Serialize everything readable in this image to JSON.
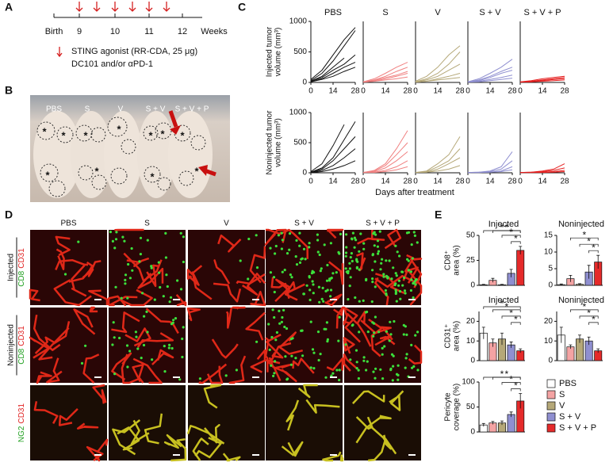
{
  "panel_labels": [
    "A",
    "B",
    "C",
    "D",
    "E"
  ],
  "timeline": {
    "ticks": [
      "Birth",
      "9",
      "10",
      "11",
      "12",
      "Weeks"
    ],
    "legend": [
      "STING agonist (RR-CDA, 25 μg)",
      "DC101 and/or αPD-1"
    ]
  },
  "photo": {
    "groups": [
      "PBS",
      "S",
      "V",
      "S + V",
      "S + V + P"
    ],
    "star": "*"
  },
  "curves_xlabel": "Days after treatment",
  "microscopy": {
    "columns": [
      "PBS",
      "S",
      "V",
      "S + V",
      "S + V + P"
    ],
    "rows": [
      {
        "title": "Injected",
        "stains": [
          "CD8",
          "CD31"
        ]
      },
      {
        "title": "Noninjected",
        "stains": [
          "CD8",
          "CD31"
        ]
      },
      {
        "stains": [
          "NG2",
          "CD31"
        ]
      }
    ]
  },
  "bar_legend": {
    "labels": [
      "PBS",
      "S",
      "V",
      "S + V",
      "S + V + P"
    ],
    "colors": [
      "#ffffff",
      "#f4a3a3",
      "#b5a878",
      "#8f8fd0",
      "#e52a2a"
    ]
  },
  "chart_data": [
    {
      "type": "line",
      "title": "PBS",
      "ylabel": [
        "Injected tumor",
        "volume (mm³)"
      ],
      "x": [
        0,
        7,
        14,
        21,
        28
      ],
      "xlim": [
        0,
        28
      ],
      "ylim": [
        0,
        1000
      ],
      "xticks": [
        0,
        14,
        28
      ],
      "yticks": [
        0,
        500,
        1000
      ],
      "series": [
        {
          "color": "#111111",
          "values": [
            50,
            200,
            450,
            700,
            900
          ]
        },
        {
          "color": "#111111",
          "values": [
            30,
            150,
            350,
            600,
            850
          ]
        },
        {
          "color": "#111111",
          "values": [
            20,
            100,
            250,
            400,
            null
          ]
        },
        {
          "color": "#111111",
          "values": [
            20,
            80,
            200,
            300,
            450
          ]
        },
        {
          "color": "#111111",
          "values": [
            10,
            60,
            150,
            250,
            330
          ]
        },
        {
          "color": "#111111",
          "values": [
            10,
            50,
            100,
            180,
            250
          ]
        }
      ]
    },
    {
      "type": "line",
      "title": "S",
      "x": [
        0,
        7,
        14,
        21,
        28
      ],
      "xlim": [
        0,
        28
      ],
      "ylim": [
        0,
        1000
      ],
      "xticks": [
        0,
        14,
        28
      ],
      "series": [
        {
          "color": "#f08080",
          "values": [
            10,
            60,
            150,
            250,
            330
          ]
        },
        {
          "color": "#f08080",
          "values": [
            10,
            40,
            100,
            180,
            250
          ]
        },
        {
          "color": "#f08080",
          "values": [
            5,
            30,
            80,
            120,
            180
          ]
        },
        {
          "color": "#f08080",
          "values": [
            5,
            20,
            60,
            100,
            150
          ]
        },
        {
          "color": "#f08080",
          "values": [
            5,
            20,
            40,
            60,
            90
          ]
        }
      ]
    },
    {
      "type": "line",
      "title": "V",
      "x": [
        0,
        7,
        14,
        21,
        28
      ],
      "xlim": [
        0,
        28
      ],
      "ylim": [
        0,
        1000
      ],
      "xticks": [
        0,
        14,
        28
      ],
      "series": [
        {
          "color": "#b5a878",
          "values": [
            20,
            100,
            250,
            450,
            600
          ]
        },
        {
          "color": "#b5a878",
          "values": [
            10,
            60,
            150,
            300,
            500
          ]
        },
        {
          "color": "#b5a878",
          "values": [
            10,
            40,
            100,
            200,
            300
          ]
        },
        {
          "color": "#b5a878",
          "values": [
            5,
            20,
            60,
            100,
            150
          ]
        },
        {
          "color": "#b5a878",
          "values": [
            5,
            20,
            40,
            60,
            80
          ]
        }
      ]
    },
    {
      "type": "line",
      "title": "S + V",
      "x": [
        0,
        7,
        14,
        21,
        28
      ],
      "xlim": [
        0,
        28
      ],
      "ylim": [
        0,
        1000
      ],
      "xticks": [
        0,
        14,
        28
      ],
      "series": [
        {
          "color": "#8f8fd0",
          "values": [
            10,
            60,
            150,
            250,
            380
          ]
        },
        {
          "color": "#8f8fd0",
          "values": [
            10,
            40,
            100,
            180,
            250
          ]
        },
        {
          "color": "#8f8fd0",
          "values": [
            5,
            30,
            80,
            150,
            200
          ]
        },
        {
          "color": "#8f8fd0",
          "values": [
            5,
            20,
            50,
            80,
            120
          ]
        },
        {
          "color": "#8f8fd0",
          "values": [
            5,
            10,
            30,
            50,
            70
          ]
        }
      ]
    },
    {
      "type": "line",
      "title": "S + V + P",
      "x": [
        0,
        7,
        14,
        21,
        28
      ],
      "xlim": [
        0,
        28
      ],
      "ylim": [
        0,
        1000
      ],
      "xticks": [
        0,
        14,
        28
      ],
      "series": [
        {
          "color": "#e52020",
          "values": [
            10,
            30,
            60,
            80,
            100
          ]
        },
        {
          "color": "#e52020",
          "values": [
            5,
            20,
            40,
            60,
            80
          ]
        },
        {
          "color": "#e52020",
          "values": [
            5,
            10,
            30,
            50,
            60
          ]
        },
        {
          "color": "#e52020",
          "values": [
            5,
            10,
            20,
            30,
            40
          ]
        }
      ]
    },
    {
      "type": "line",
      "ylabel": [
        "Noninjected tumor",
        "volume (mm³)"
      ],
      "x": [
        0,
        7,
        14,
        21,
        28
      ],
      "xlim": [
        0,
        28
      ],
      "ylim": [
        0,
        1000
      ],
      "xticks": [
        0,
        14,
        28
      ],
      "yticks": [
        0,
        500,
        1000
      ],
      "series": [
        {
          "color": "#111111",
          "values": [
            20,
            150,
            450,
            800,
            null
          ]
        },
        {
          "color": "#111111",
          "values": [
            10,
            80,
            250,
            550,
            850
          ]
        },
        {
          "color": "#111111",
          "values": [
            10,
            60,
            200,
            400,
            600
          ]
        },
        {
          "color": "#111111",
          "values": [
            5,
            40,
            120,
            250,
            400
          ]
        },
        {
          "color": "#111111",
          "values": [
            5,
            20,
            60,
            120,
            200
          ]
        }
      ]
    },
    {
      "type": "line",
      "x": [
        0,
        7,
        14,
        21,
        28
      ],
      "xlim": [
        0,
        28
      ],
      "ylim": [
        0,
        1000
      ],
      "xticks": [
        0,
        14,
        28
      ],
      "series": [
        {
          "color": "#f08080",
          "values": [
            5,
            40,
            150,
            400,
            700
          ]
        },
        {
          "color": "#f08080",
          "values": [
            5,
            30,
            120,
            300,
            500
          ]
        },
        {
          "color": "#f08080",
          "values": [
            5,
            20,
            80,
            200,
            350
          ]
        },
        {
          "color": "#f08080",
          "values": [
            5,
            10,
            40,
            100,
            200
          ]
        },
        {
          "color": "#f08080",
          "values": [
            5,
            5,
            20,
            50,
            100
          ]
        }
      ]
    },
    {
      "type": "line",
      "x": [
        0,
        7,
        14,
        21,
        28
      ],
      "xlim": [
        0,
        28
      ],
      "ylim": [
        0,
        1000
      ],
      "xticks": [
        0,
        14,
        28
      ],
      "series": [
        {
          "color": "#b5a878",
          "values": [
            5,
            30,
            150,
            300,
            600
          ]
        },
        {
          "color": "#b5a878",
          "values": [
            5,
            20,
            100,
            200,
            400
          ]
        },
        {
          "color": "#b5a878",
          "values": [
            5,
            10,
            60,
            150,
            250
          ]
        },
        {
          "color": "#b5a878",
          "values": [
            5,
            10,
            30,
            60,
            120
          ]
        }
      ]
    },
    {
      "type": "line",
      "x": [
        0,
        7,
        14,
        21,
        28
      ],
      "xlim": [
        0,
        28
      ],
      "ylim": [
        0,
        1000
      ],
      "xticks": [
        0,
        14,
        28
      ],
      "series": [
        {
          "color": "#8f8fd0",
          "values": [
            5,
            10,
            30,
            100,
            350
          ]
        },
        {
          "color": "#8f8fd0",
          "values": [
            5,
            10,
            20,
            60,
            200
          ]
        },
        {
          "color": "#8f8fd0",
          "values": [
            5,
            5,
            10,
            30,
            100
          ]
        },
        {
          "color": "#8f8fd0",
          "values": [
            5,
            5,
            10,
            20,
            50
          ]
        }
      ]
    },
    {
      "type": "line",
      "x": [
        0,
        7,
        14,
        21,
        28
      ],
      "xlim": [
        0,
        28
      ],
      "ylim": [
        0,
        1000
      ],
      "xticks": [
        0,
        14,
        28
      ],
      "series": [
        {
          "color": "#e52020",
          "values": [
            5,
            10,
            30,
            60,
            150
          ]
        },
        {
          "color": "#e52020",
          "values": [
            5,
            10,
            20,
            40,
            80
          ]
        },
        {
          "color": "#e52020",
          "values": [
            5,
            5,
            10,
            20,
            40
          ]
        },
        {
          "color": "#e52020",
          "values": [
            5,
            5,
            5,
            10,
            20
          ]
        }
      ]
    },
    {
      "type": "bar",
      "title": "Injected",
      "ylabel": [
        "CD8⁺",
        "area (%)"
      ],
      "values": [
        0.5,
        5,
        0.5,
        12,
        35
      ],
      "errors": [
        0.5,
        2,
        0.5,
        4,
        4
      ],
      "colors": [
        "#ffffff",
        "#f4a3a3",
        "#b5a878",
        "#8f8fd0",
        "#e52a2a"
      ],
      "ylim": [
        0,
        50
      ],
      "yticks": [
        0,
        25,
        50
      ],
      "stars": [
        "*",
        "*",
        "*",
        "*"
      ]
    },
    {
      "type": "bar",
      "title": "Noninjected",
      "values": [
        0.2,
        2,
        0.3,
        4,
        7
      ],
      "errors": [
        0.2,
        1,
        0.2,
        2,
        2
      ],
      "colors": [
        "#ffffff",
        "#f4a3a3",
        "#b5a878",
        "#8f8fd0",
        "#e52a2a"
      ],
      "ylim": [
        0,
        15
      ],
      "yticks": [
        0,
        5,
        10,
        15
      ],
      "stars": [
        "*",
        "*",
        "*"
      ]
    },
    {
      "type": "bar",
      "title": "Injected",
      "ylabel": [
        "CD31⁺",
        "area (%)"
      ],
      "values": [
        14,
        9,
        11,
        8,
        5
      ],
      "errors": [
        3,
        2,
        3,
        1.5,
        1
      ],
      "colors": [
        "#ffffff",
        "#f4a3a3",
        "#b5a878",
        "#8f8fd0",
        "#e52a2a"
      ],
      "ylim": [
        0,
        25
      ],
      "yticks": [
        0,
        10,
        20
      ],
      "stars": [
        "*",
        "*",
        "*",
        "*"
      ]
    },
    {
      "type": "bar",
      "title": "Noninjected",
      "values": [
        13,
        7,
        11,
        10,
        5
      ],
      "errors": [
        4,
        1,
        2,
        2,
        1
      ],
      "colors": [
        "#ffffff",
        "#f4a3a3",
        "#b5a878",
        "#8f8fd0",
        "#e52a2a"
      ],
      "ylim": [
        0,
        25
      ],
      "yticks": [
        0,
        10,
        20
      ],
      "stars": [
        "*",
        "*",
        "*"
      ]
    },
    {
      "type": "bar",
      "ylabel": [
        "Pericyte",
        "coverage (%)"
      ],
      "values": [
        14,
        18,
        18,
        35,
        62
      ],
      "errors": [
        3,
        3,
        4,
        5,
        15
      ],
      "colors": [
        "#ffffff",
        "#f4a3a3",
        "#b5a878",
        "#8f8fd0",
        "#e52a2a"
      ],
      "ylim": [
        0,
        100
      ],
      "yticks": [
        0,
        50,
        100
      ],
      "stars": [
        "*",
        "*",
        "*",
        "*"
      ]
    }
  ]
}
